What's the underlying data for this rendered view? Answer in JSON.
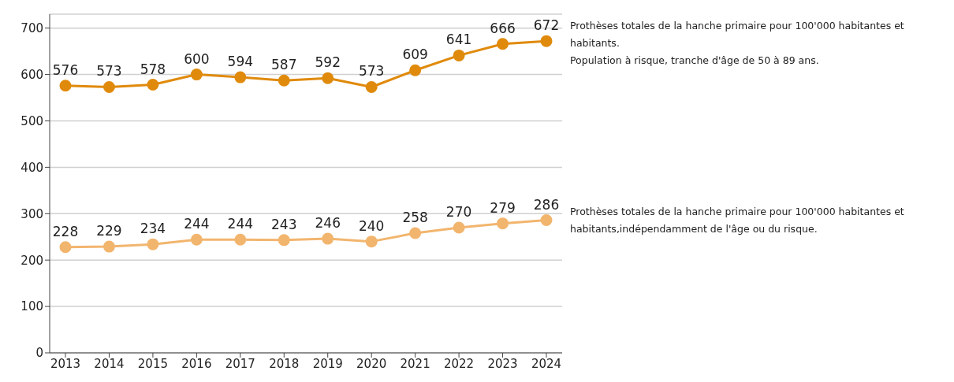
{
  "chart_data": {
    "type": "line",
    "categories": [
      "2013",
      "2014",
      "2015",
      "2016",
      "2017",
      "2018",
      "2019",
      "2020",
      "2021",
      "2022",
      "2023",
      "2024"
    ],
    "series": [
      {
        "name": "Prothèses totales de la hanche primaire  pour 100'000 habitantes et habitants.\nPopulation à risque, tranche d'âge de 50 à 89 ans.",
        "color": "#e08a0c",
        "values": [
          576,
          573,
          578,
          600,
          594,
          587,
          592,
          573,
          609,
          641,
          666,
          672
        ]
      },
      {
        "name": "Prothèses totales de la hanche primaire  pour 100'000 habitantes et habitants,indépendamment de l'âge ou du risque.",
        "color": "#f2b56e",
        "values": [
          228,
          229,
          234,
          244,
          244,
          243,
          246,
          240,
          258,
          270,
          279,
          286
        ]
      }
    ],
    "ylim": [
      0,
      730
    ],
    "yticks": [
      0,
      100,
      200,
      300,
      400,
      500,
      600,
      700
    ],
    "grid": "y",
    "marker": "circle",
    "line_style": "solid",
    "data_labels": true,
    "legend": "right"
  }
}
